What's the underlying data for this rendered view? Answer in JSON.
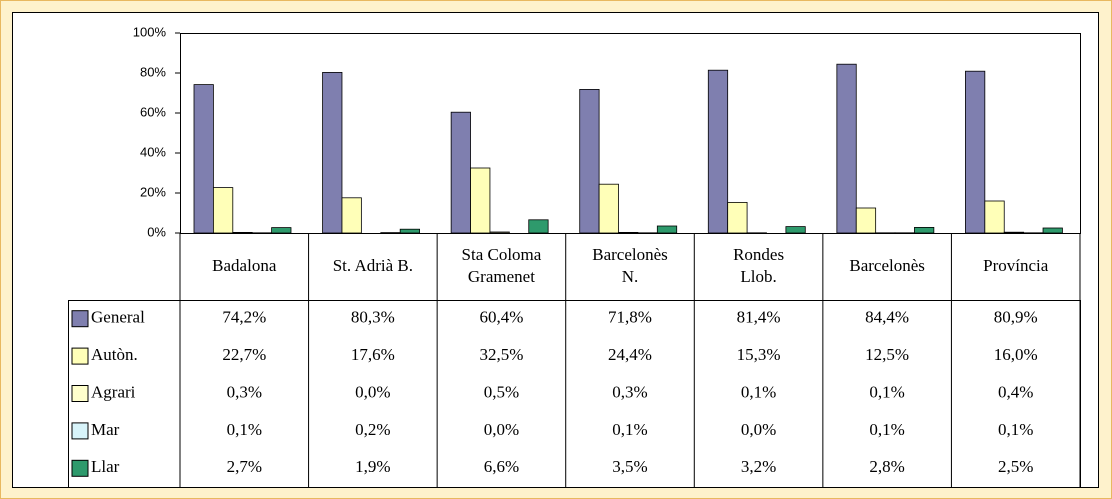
{
  "chart_data": {
    "type": "bar",
    "categories": [
      "Badalona",
      "St. Adrià B.",
      "Sta Coloma\nGramenet",
      "Barcelonès\nN.",
      "Rondes\nLlob.",
      "Barcelonès",
      "Província"
    ],
    "series": [
      {
        "name": "General",
        "color": "#7f7faf",
        "values": [
          74.2,
          80.3,
          60.4,
          71.8,
          81.4,
          84.4,
          80.9
        ],
        "value_labels": [
          "74,2%",
          "80,3%",
          "60,4%",
          "71,8%",
          "81,4%",
          "84,4%",
          "80,9%"
        ]
      },
      {
        "name": "Autòn.",
        "color": "#ffffb8",
        "values": [
          22.7,
          17.6,
          32.5,
          24.4,
          15.3,
          12.5,
          16.0
        ],
        "value_labels": [
          "22,7%",
          "17,6%",
          "32,5%",
          "24,4%",
          "15,3%",
          "12,5%",
          "16,0%"
        ]
      },
      {
        "name": "Agrari",
        "color": "#ffffcc",
        "values": [
          0.3,
          0.0,
          0.5,
          0.3,
          0.1,
          0.1,
          0.4
        ],
        "value_labels": [
          "0,3%",
          "0,0%",
          "0,5%",
          "0,3%",
          "0,1%",
          "0,1%",
          "0,4%"
        ]
      },
      {
        "name": "Mar",
        "color": "#d8f4fa",
        "values": [
          0.1,
          0.2,
          0.0,
          0.1,
          0.0,
          0.1,
          0.1
        ],
        "value_labels": [
          "0,1%",
          "0,2%",
          "0,0%",
          "0,1%",
          "0,0%",
          "0,1%",
          "0,1%"
        ]
      },
      {
        "name": "Llar",
        "color": "#2e9a6c",
        "values": [
          2.7,
          1.9,
          6.6,
          3.5,
          3.2,
          2.8,
          2.5
        ],
        "value_labels": [
          "2,7%",
          "1,9%",
          "6,6%",
          "3,5%",
          "3,2%",
          "2,8%",
          "2,5%"
        ]
      }
    ],
    "ylim": [
      0,
      100
    ],
    "yticks": [
      {
        "value": 0,
        "label": "0%"
      },
      {
        "value": 20,
        "label": "20%"
      },
      {
        "value": 40,
        "label": "40%"
      },
      {
        "value": 60,
        "label": "60%"
      },
      {
        "value": 80,
        "label": "80%"
      },
      {
        "value": 100,
        "label": "100%"
      }
    ],
    "grid": false
  }
}
